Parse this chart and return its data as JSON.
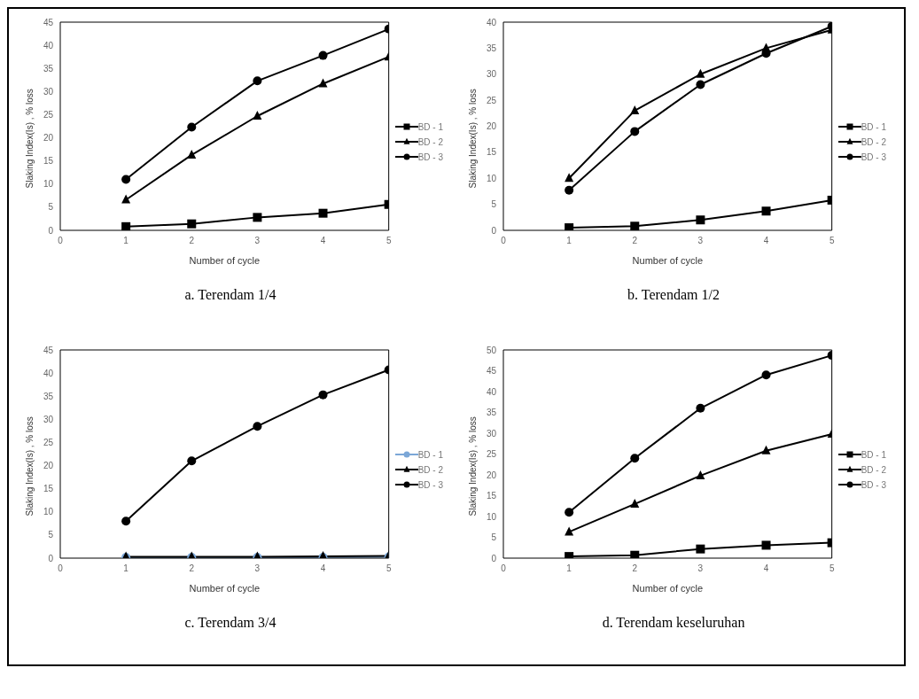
{
  "chart_data": [
    {
      "type": "line",
      "annotations": [
        "a. Terendam 1/4"
      ],
      "xlabel": "Number of cycle",
      "ylabel": "Slaking Index(Is) , % loss",
      "x": [
        1,
        2,
        3,
        4,
        5
      ],
      "xlim": [
        0,
        5
      ],
      "xticks": [
        0,
        1,
        2,
        3,
        4,
        5
      ],
      "ylim": [
        0,
        45
      ],
      "yticks": [
        0,
        5,
        10,
        15,
        20,
        25,
        30,
        35,
        40,
        45
      ],
      "grid": false,
      "legend": "right",
      "series": [
        {
          "name": "BD - 1",
          "color": "#000000",
          "marker": "square",
          "values": [
            0.8,
            1.4,
            2.8,
            3.7,
            5.6
          ]
        },
        {
          "name": "BD - 2",
          "color": "#000000",
          "marker": "triangle",
          "values": [
            6.6,
            16.3,
            24.7,
            31.7,
            37.5
          ]
        },
        {
          "name": "BD - 3",
          "color": "#000000",
          "marker": "circle",
          "values": [
            11,
            22.3,
            32.3,
            37.8,
            43.5
          ]
        }
      ]
    },
    {
      "type": "line",
      "annotations": [
        "b. Terendam 1/2"
      ],
      "xlabel": "Number of cycle",
      "ylabel": "Slaking Index(Is) , % loss",
      "x": [
        1,
        2,
        3,
        4,
        5
      ],
      "xlim": [
        0,
        5
      ],
      "xticks": [
        0,
        1,
        2,
        3,
        4,
        5
      ],
      "ylim": [
        0,
        40
      ],
      "yticks": [
        0,
        5,
        10,
        15,
        20,
        25,
        30,
        35,
        40
      ],
      "grid": false,
      "legend": "right",
      "series": [
        {
          "name": "BD - 1",
          "color": "#000000",
          "marker": "square",
          "values": [
            0.5,
            0.8,
            2,
            3.7,
            5.8
          ]
        },
        {
          "name": "BD - 2",
          "color": "#000000",
          "marker": "triangle",
          "values": [
            10,
            23,
            30,
            35,
            38.5
          ]
        },
        {
          "name": "BD - 3",
          "color": "#000000",
          "marker": "circle",
          "values": [
            7.7,
            19,
            28,
            34,
            39.2
          ]
        }
      ]
    },
    {
      "type": "line",
      "annotations": [
        "c. Terendam 3/4"
      ],
      "xlabel": "Number of cycle",
      "ylabel": "Slaking Index(Is) , % loss",
      "x": [
        1,
        2,
        3,
        4,
        5
      ],
      "xlim": [
        0,
        5
      ],
      "xticks": [
        0,
        1,
        2,
        3,
        4,
        5
      ],
      "ylim": [
        0,
        45
      ],
      "yticks": [
        0,
        5,
        10,
        15,
        20,
        25,
        30,
        35,
        40,
        45
      ],
      "grid": false,
      "legend": "right",
      "series": [
        {
          "name": "BD - 1",
          "color": "#7ba7d7",
          "marker": "circle",
          "values": [
            0.2,
            0.2,
            0.2,
            0.2,
            0.3
          ]
        },
        {
          "name": "BD - 2",
          "color": "#000000",
          "marker": "triangle",
          "values": [
            0.3,
            0.3,
            0.3,
            0.4,
            0.5
          ]
        },
        {
          "name": "BD - 3",
          "color": "#000000",
          "marker": "circle",
          "values": [
            8,
            21,
            28.5,
            35.3,
            40.7
          ]
        }
      ]
    },
    {
      "type": "line",
      "annotations": [
        "d. Terendam keseluruhan"
      ],
      "xlabel": "Number of cycle",
      "ylabel": "Slaking Index(Is) , % loss",
      "x": [
        1,
        2,
        3,
        4,
        5
      ],
      "xlim": [
        0,
        5
      ],
      "xticks": [
        0,
        1,
        2,
        3,
        4,
        5
      ],
      "ylim": [
        0,
        50
      ],
      "yticks": [
        0,
        5,
        10,
        15,
        20,
        25,
        30,
        35,
        40,
        45,
        50
      ],
      "grid": false,
      "legend": "right",
      "series": [
        {
          "name": "BD - 1",
          "color": "#000000",
          "marker": "square",
          "values": [
            0.4,
            0.7,
            2.2,
            3.1,
            3.7
          ]
        },
        {
          "name": "BD - 2",
          "color": "#000000",
          "marker": "triangle",
          "values": [
            6.3,
            13,
            19.8,
            25.8,
            29.8
          ]
        },
        {
          "name": "BD - 3",
          "color": "#000000",
          "marker": "circle",
          "values": [
            11,
            24,
            36,
            44,
            48.7
          ]
        }
      ]
    }
  ]
}
